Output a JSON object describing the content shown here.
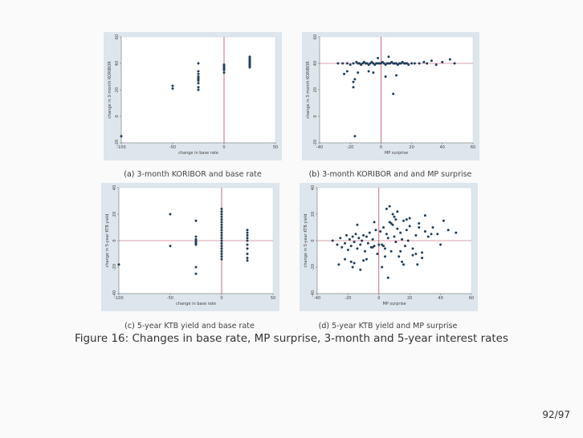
{
  "figure": {
    "caption_label": "Figure 16:",
    "caption_text": "Changes in base rate, MP surprise, 3-month and 5-year interest rates",
    "page": "92/97"
  },
  "subcaptions": [
    {
      "label": "(a)",
      "text": "3-month KORIBOR and base rate"
    },
    {
      "label": "(b)",
      "text": "3-month KORIBOR and and MP surprise"
    },
    {
      "label": "(c)",
      "text": "5-year KTB yield and base rate"
    },
    {
      "label": "(d)",
      "text": "5-year KTB yield and MP surprise"
    }
  ],
  "colors": {
    "marker": "#1f3e5a",
    "refline": "#b03050",
    "panel": "#dce6ec"
  },
  "chart_data": [
    {
      "type": "scatter",
      "id": "a",
      "xlabel": "change in base rate",
      "ylabel": "change in 3-month KORIBOR",
      "xlim": [
        -100,
        50
      ],
      "ylim": [
        -20,
        60
      ],
      "xticks": [
        "-100",
        "-50",
        "0",
        "50"
      ],
      "yticks": [
        "-20",
        "0",
        "20",
        "40",
        "60"
      ],
      "refx": 0,
      "refy": null,
      "x": [
        -100,
        -50,
        -50,
        -25,
        -25,
        -25,
        -25,
        -25,
        -25,
        -25,
        -25,
        -25,
        -25,
        0,
        0,
        0,
        0,
        0,
        0,
        25,
        25,
        25,
        25,
        25,
        25,
        25,
        25,
        25
      ],
      "y": [
        -15,
        23,
        21,
        40,
        30,
        27,
        25,
        22,
        20,
        34,
        32,
        29,
        28,
        37,
        36,
        35,
        33,
        38,
        39,
        39,
        40,
        42,
        43,
        44,
        38,
        37,
        41,
        45
      ]
    },
    {
      "type": "scatter",
      "id": "b",
      "xlabel": "MP surprise",
      "ylabel": "change in 3-month KORIBOR",
      "xlim": [
        -40,
        60
      ],
      "ylim": [
        -20,
        60
      ],
      "xticks": [
        "-40",
        "-20",
        "0",
        "20",
        "40",
        "60"
      ],
      "yticks": [
        "-20",
        "0",
        "20",
        "40",
        "60"
      ],
      "refx": 0,
      "refy": 40,
      "x": [
        -28,
        -25,
        -22,
        -20,
        -18,
        -16,
        -15,
        -14,
        -13,
        -12,
        -11,
        -10,
        -9,
        -8,
        -7,
        -6,
        -5,
        -4,
        -3,
        -2,
        -1,
        0,
        1,
        2,
        3,
        4,
        5,
        6,
        7,
        8,
        9,
        10,
        11,
        12,
        13,
        14,
        15,
        16,
        17,
        18,
        20,
        22,
        25,
        28,
        30,
        33,
        36,
        40,
        45,
        48,
        -24,
        -22,
        -17,
        -18,
        -18,
        -15,
        -8,
        -5,
        3,
        8,
        10,
        -17,
        5,
        -2
      ],
      "y": [
        40,
        40,
        40,
        39,
        40,
        41,
        40,
        40,
        39,
        40,
        41,
        40,
        40,
        39,
        40,
        41,
        40,
        39,
        40,
        40,
        40,
        40,
        41,
        40,
        39,
        40,
        40,
        40,
        41,
        40,
        40,
        40,
        39,
        40,
        40,
        41,
        40,
        40,
        40,
        39,
        40,
        40,
        40,
        41,
        40,
        42,
        39,
        41,
        43,
        40,
        32,
        34,
        28,
        26,
        22,
        33,
        34,
        33,
        30,
        17,
        31,
        -15,
        45,
        44
      ]
    },
    {
      "type": "scatter",
      "id": "c",
      "xlabel": "change in base rate",
      "ylabel": "change in 5-year KTB yield",
      "xlim": [
        -100,
        50
      ],
      "ylim": [
        -40,
        40
      ],
      "xticks": [
        "-100",
        "-50",
        "0",
        "50"
      ],
      "yticks": [
        "-40",
        "-20",
        "0",
        "20",
        "40"
      ],
      "refx": 0,
      "refy": 0,
      "x": [
        -100,
        -50,
        -50,
        -25,
        -25,
        -25,
        -25,
        -25,
        -25,
        -25,
        -25,
        -25,
        0,
        0,
        0,
        0,
        0,
        0,
        0,
        0,
        0,
        0,
        0,
        0,
        0,
        0,
        0,
        0,
        0,
        0,
        0,
        0,
        25,
        25,
        25,
        25,
        25,
        25,
        25,
        25,
        25,
        25
      ],
      "y": [
        -18,
        20,
        -4,
        15,
        3,
        1,
        0,
        -2,
        -3,
        -20,
        -25,
        -1,
        24,
        22,
        20,
        18,
        16,
        14,
        12,
        10,
        8,
        6,
        4,
        2,
        0,
        -2,
        -4,
        -6,
        -8,
        -10,
        -12,
        -14,
        8,
        6,
        4,
        2,
        0,
        -3,
        -6,
        -10,
        -13,
        -15
      ]
    },
    {
      "type": "scatter",
      "id": "d",
      "xlabel": "MP surprise",
      "ylabel": "change in 5-year KTB yield",
      "xlim": [
        -40,
        60
      ],
      "ylim": [
        -40,
        40
      ],
      "xticks": [
        "-40",
        "-20",
        "0",
        "20",
        "40",
        "60"
      ],
      "yticks": [
        "-40",
        "-20",
        "0",
        "20",
        "40"
      ],
      "refx": 0,
      "refy": 0,
      "x": [
        -30,
        -27,
        -25,
        -24,
        -22,
        -21,
        -20,
        -19,
        -18,
        -17,
        -16,
        -15,
        -14,
        -13,
        -12,
        -11,
        -10,
        -9,
        -8,
        -7,
        -6,
        -5,
        -4,
        -3,
        -2,
        -1,
        1,
        2,
        3,
        4,
        5,
        6,
        7,
        8,
        9,
        10,
        11,
        12,
        13,
        14,
        15,
        16,
        17,
        18,
        19,
        20,
        22,
        24,
        26,
        28,
        30,
        32,
        35,
        38,
        40,
        45,
        50,
        -26,
        -18,
        -12,
        -8,
        -3,
        2,
        6,
        10,
        14,
        18,
        22,
        26,
        30,
        -22,
        -16,
        -10,
        -4,
        4,
        8,
        12,
        16,
        20,
        24,
        28,
        34,
        42,
        5,
        7,
        9,
        11,
        -17,
        0,
        3,
        -14,
        15,
        25
      ],
      "y": [
        0,
        -3,
        2,
        -5,
        -2,
        4,
        -7,
        1,
        -4,
        3,
        -1,
        5,
        -6,
        2,
        -3,
        0,
        4,
        -8,
        3,
        -2,
        6,
        -5,
        1,
        -4,
        8,
        -10,
        7,
        -3,
        10,
        -6,
        5,
        2,
        14,
        -8,
        12,
        3,
        -1,
        9,
        -12,
        6,
        1,
        15,
        -4,
        8,
        0,
        11,
        -6,
        4,
        13,
        -9,
        7,
        3,
        10,
        5,
        -3,
        8,
        6,
        -18,
        -16,
        -22,
        -14,
        14,
        -20,
        -28,
        18,
        -8,
        16,
        -11,
        10,
        19,
        -14,
        -17,
        -15,
        -5,
        -12,
        13,
        22,
        -18,
        17,
        -10,
        -13,
        5,
        15,
        24,
        26,
        20,
        16,
        -20,
        -3,
        -4,
        12,
        -16,
        -18
      ]
    }
  ]
}
